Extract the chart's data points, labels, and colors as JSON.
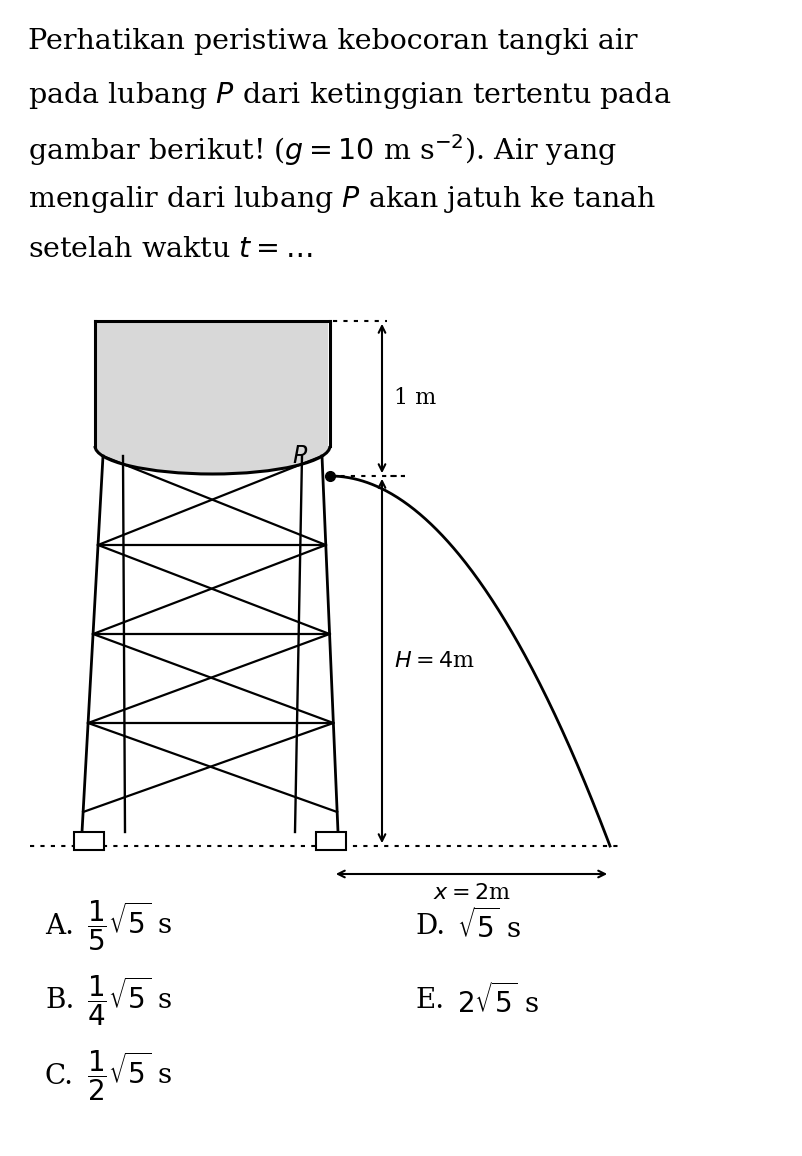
{
  "bg_color": "#ffffff",
  "fig_width": 8.02,
  "fig_height": 11.56,
  "top_text_lines": [
    "Perhatikan peristiwa kebocoran tangki air",
    "pada lubang $P$ dari ketinggian tertentu pada",
    "gambar berikut! ($g = 10$ m s$^{-2}$). Air yang",
    "mengalir dari lubang $P$ akan jatuh ke tanah",
    "setelah waktu $t = \\ldots$"
  ],
  "label_1m": "1 m",
  "label_H": "$H = 4$m",
  "label_x": "$x = 2$m",
  "label_P": "$P$",
  "choice_A": "$\\dfrac{1}{5}\\sqrt{5}$ s",
  "choice_B": "$\\dfrac{1}{4}\\sqrt{5}$ s",
  "choice_C": "$\\dfrac{1}{2}\\sqrt{5}$ s",
  "choice_D": "$\\sqrt{5}$ s",
  "choice_E": "$2\\sqrt{5}$ s"
}
